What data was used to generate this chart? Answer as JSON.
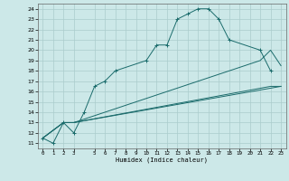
{
  "xlabel": "Humidex (Indice chaleur)",
  "bg_color": "#cce8e8",
  "grid_color": "#aacccc",
  "line_color": "#1a6b6b",
  "xlim": [
    -0.5,
    23.5
  ],
  "ylim": [
    10.5,
    24.5
  ],
  "xticks": [
    0,
    1,
    2,
    3,
    5,
    6,
    7,
    8,
    9,
    10,
    11,
    12,
    13,
    14,
    15,
    16,
    17,
    18,
    19,
    20,
    21,
    22,
    23
  ],
  "yticks": [
    11,
    12,
    13,
    14,
    15,
    16,
    17,
    18,
    19,
    20,
    21,
    22,
    23,
    24
  ],
  "line1_x": [
    0,
    1,
    2,
    3,
    4,
    5,
    6,
    7,
    10,
    11,
    12,
    13,
    14,
    15,
    16,
    17,
    18,
    21,
    22
  ],
  "line1_y": [
    11.5,
    11.0,
    13.0,
    12.0,
    14.0,
    16.5,
    17.0,
    18.0,
    19.0,
    20.5,
    20.5,
    23.0,
    23.5,
    24.0,
    24.0,
    23.0,
    21.0,
    20.0,
    18.0
  ],
  "line2_x": [
    0,
    2,
    3,
    21,
    22,
    23
  ],
  "line2_y": [
    11.5,
    13.0,
    13.0,
    19.0,
    20.0,
    18.5
  ],
  "line3_x": [
    0,
    2,
    3,
    22,
    23
  ],
  "line3_y": [
    11.5,
    13.0,
    13.0,
    16.5,
    16.5
  ],
  "line4_x": [
    0,
    2,
    3,
    23
  ],
  "line4_y": [
    11.5,
    13.0,
    13.0,
    16.5
  ]
}
